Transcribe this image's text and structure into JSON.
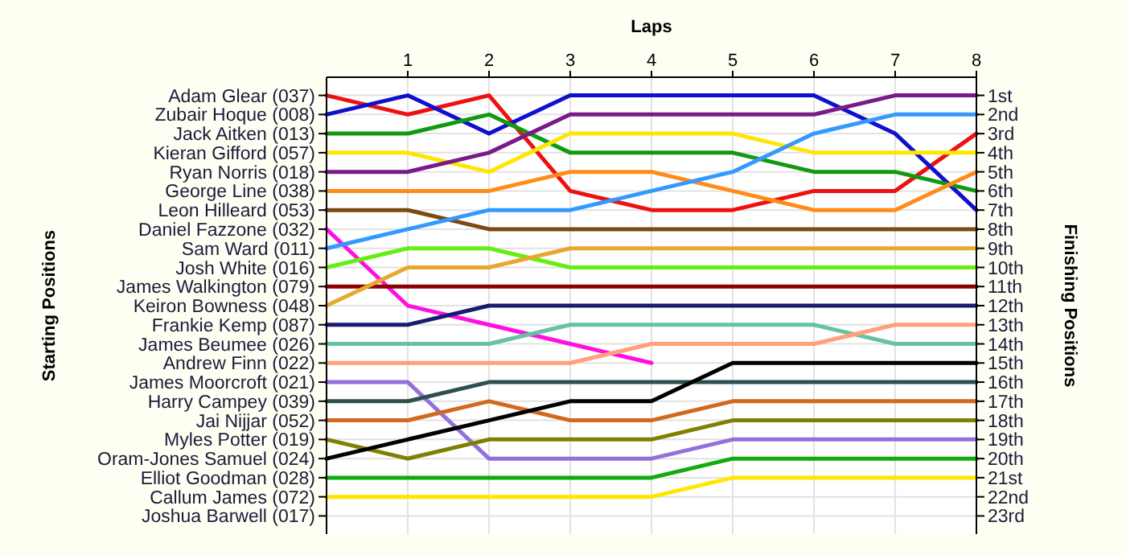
{
  "chart_data": {
    "type": "line",
    "xlabel": "Laps",
    "annotations": [
      "Starting Positions"
    ],
    "y2label": "Finishing Positions",
    "x": [
      0,
      1,
      2,
      3,
      4,
      5,
      6,
      7,
      8
    ],
    "xlim": [
      0,
      8
    ],
    "xticks": [
      1,
      2,
      3,
      4,
      5,
      6,
      7,
      8
    ],
    "y2lim": [
      23.95,
      0.05
    ],
    "grid": true,
    "marker": "none",
    "line_style": "solid",
    "y_categories": [
      "Adam Glear (037)",
      "Zubair Hoque (008)",
      "Jack Aitken (013)",
      "Kieran Gifford (057)",
      "Ryan Norris (018)",
      "George Line (038)",
      "Leon Hilleard (053)",
      "Daniel Fazzone (032)",
      "Sam Ward (011)",
      "Josh White (016)",
      "James Walkington (079)",
      "Keiron Bowness (048)",
      "Frankie Kemp (087)",
      "James Beumee (026)",
      "Andrew Finn (022)",
      "James Moorcroft (021)",
      "Harry Campey (039)",
      "Jai Nijjar (052)",
      "Myles Potter (019)",
      "Oram-Jones Samuel (024)",
      "Elliot Goodman (028)",
      "Callum James (072)",
      "Joshua Barwell (017)"
    ],
    "y2ticks": [
      {
        "value": 1,
        "label": "1st"
      },
      {
        "value": 2,
        "label": "2nd"
      },
      {
        "value": 3,
        "label": "3rd"
      },
      {
        "value": 4,
        "label": "4th"
      },
      {
        "value": 5,
        "label": "5th"
      },
      {
        "value": 6,
        "label": "6th"
      },
      {
        "value": 7,
        "label": "7th"
      },
      {
        "value": 8,
        "label": "8th"
      },
      {
        "value": 9,
        "label": "9th"
      },
      {
        "value": 10,
        "label": "10th"
      },
      {
        "value": 11,
        "label": "11th"
      },
      {
        "value": 12,
        "label": "12th"
      },
      {
        "value": 13,
        "label": "13th"
      },
      {
        "value": 14,
        "label": "14th"
      },
      {
        "value": 15,
        "label": "15th"
      },
      {
        "value": 16,
        "label": "16th"
      },
      {
        "value": 17,
        "label": "17th"
      },
      {
        "value": 18,
        "label": "18th"
      },
      {
        "value": 19,
        "label": "19th"
      },
      {
        "value": 20,
        "label": "20th"
      },
      {
        "value": 21,
        "label": "21st"
      },
      {
        "value": 22,
        "label": "22nd"
      },
      {
        "value": 23,
        "label": "23rd"
      }
    ],
    "series": [
      {
        "axis": "y2",
        "color": "#ee1111",
        "values": [
          1,
          2,
          1,
          6,
          7,
          7,
          6,
          6,
          3
        ]
      },
      {
        "axis": "y2",
        "color": "#1010cc",
        "values": [
          2,
          1,
          3,
          1,
          1,
          1,
          1,
          3,
          7
        ]
      },
      {
        "axis": "y2",
        "color": "#119911",
        "values": [
          3,
          3,
          2,
          4,
          4,
          4,
          5,
          5,
          6
        ]
      },
      {
        "axis": "y2",
        "color": "#ffe600",
        "values": [
          4,
          4,
          5,
          3,
          3,
          3,
          4,
          4,
          4
        ]
      },
      {
        "axis": "y2",
        "color": "#7a1a8a",
        "values": [
          5,
          5,
          4,
          2,
          2,
          2,
          2,
          1,
          1
        ]
      },
      {
        "axis": "y2",
        "color": "#ff8c1a",
        "values": [
          6,
          6,
          6,
          5,
          5,
          6,
          7,
          7,
          5
        ]
      },
      {
        "axis": "y2",
        "color": "#7b4a12",
        "values": [
          7,
          7,
          8,
          8,
          8,
          8,
          8,
          8,
          8
        ]
      },
      {
        "axis": "y2",
        "color": "#ff10e0",
        "values": [
          8,
          12,
          13,
          14,
          15,
          null,
          null,
          null,
          null
        ]
      },
      {
        "axis": "y2",
        "color": "#3399ff",
        "values": [
          9,
          8,
          7,
          7,
          6,
          5,
          3,
          2,
          2
        ]
      },
      {
        "axis": "y2",
        "color": "#66ee11",
        "values": [
          10,
          9,
          9,
          10,
          10,
          10,
          10,
          10,
          10
        ]
      },
      {
        "axis": "y2",
        "color": "#8b0000",
        "values": [
          11,
          11,
          11,
          11,
          11,
          11,
          11,
          11,
          11
        ]
      },
      {
        "axis": "y2",
        "color": "#e6a82e",
        "values": [
          12,
          10,
          10,
          9,
          9,
          9,
          9,
          9,
          9
        ]
      },
      {
        "axis": "y2",
        "color": "#1a1a6e",
        "values": [
          13,
          13,
          12,
          12,
          12,
          12,
          12,
          12,
          12
        ]
      },
      {
        "axis": "y2",
        "color": "#66c2a5",
        "values": [
          14,
          14,
          14,
          13,
          13,
          13,
          13,
          14,
          14
        ]
      },
      {
        "axis": "y2",
        "color": "#ffa07a",
        "values": [
          15,
          15,
          15,
          15,
          14,
          14,
          14,
          13,
          13
        ]
      },
      {
        "axis": "y2",
        "color": "#9370db",
        "values": [
          16,
          16,
          20,
          20,
          20,
          19,
          19,
          19,
          19
        ]
      },
      {
        "axis": "y2",
        "color": "#2f4f4f",
        "values": [
          17,
          17,
          16,
          16,
          16,
          16,
          16,
          16,
          16
        ]
      },
      {
        "axis": "y2",
        "color": "#d2691e",
        "values": [
          18,
          18,
          17,
          18,
          18,
          17,
          17,
          17,
          17
        ]
      },
      {
        "axis": "y2",
        "color": "#808000",
        "values": [
          19,
          20,
          19,
          19,
          19,
          18,
          18,
          18,
          18
        ]
      },
      {
        "axis": "y2",
        "color": "#000000",
        "values": [
          20,
          19,
          18,
          17,
          17,
          15,
          15,
          15,
          15
        ]
      },
      {
        "axis": "y2",
        "color": "#11aa11",
        "values": [
          21,
          21,
          21,
          21,
          21,
          20,
          20,
          20,
          20
        ]
      },
      {
        "axis": "y2",
        "color": "#ffe600",
        "values": [
          22,
          22,
          22,
          22,
          22,
          21,
          21,
          21,
          21
        ]
      }
    ]
  }
}
